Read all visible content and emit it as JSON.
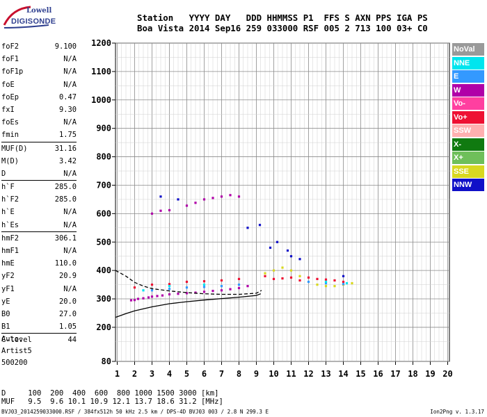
{
  "logo": {
    "line1": "Lowell",
    "line2": "DIGISONDE"
  },
  "header": {
    "line1": "Station   YYYY DAY   DDD HHMMSS P1  FFS S AXN PPS IGA PS",
    "line2": "Boa Vista 2014 Sep16 259 033000 RSF 005 2 713 100 03+ C0"
  },
  "params": [
    {
      "label": "foF2",
      "value": "9.100"
    },
    {
      "label": "foF1",
      "value": "N/A"
    },
    {
      "label": "foF1p",
      "value": "N/A"
    },
    {
      "label": "foE",
      "value": "N/A"
    },
    {
      "label": "foEp",
      "value": "0.47"
    },
    {
      "label": "fxI",
      "value": "9.30"
    },
    {
      "label": "foEs",
      "value": "N/A"
    },
    {
      "label": "fmin",
      "value": "1.75"
    },
    {
      "label": "MUF(D)",
      "value": "31.16"
    },
    {
      "label": "M(D)",
      "value": "3.42"
    },
    {
      "label": "D",
      "value": "N/A"
    },
    {
      "label": "h`F",
      "value": "285.0"
    },
    {
      "label": "h`F2",
      "value": "285.0"
    },
    {
      "label": "h`E",
      "value": "N/A"
    },
    {
      "label": "h`Es",
      "value": "N/A"
    },
    {
      "label": "hmF2",
      "value": "306.1"
    },
    {
      "label": "hmF1",
      "value": "N/A"
    },
    {
      "label": "hmE",
      "value": "110.0"
    },
    {
      "label": "yF2",
      "value": "20.9"
    },
    {
      "label": "yF1",
      "value": "N/A"
    },
    {
      "label": "yE",
      "value": "20.0"
    },
    {
      "label": "B0",
      "value": "27.0"
    },
    {
      "label": "B1",
      "value": "1.05"
    },
    {
      "label": "C-level",
      "value": "44"
    }
  ],
  "auto": {
    "line1": "Auto:",
    "line2": "Artist5",
    "line3": "500200"
  },
  "dmuf": {
    "d_row": "D     100  200  400  600  800 1000 1500 3000 [km]",
    "muf_row": "MUF   9.5  9.6 10.1 10.9 12.1 13.7 18.6 31.2 [MHz]"
  },
  "footer": {
    "info": "BVJ03_2014259033000.RSF / 384fx512h 50 kHz 2.5 km / DPS-4D BVJ03 003 / 2.8 N 299.3 E",
    "version": "Ion2Png v. 1.3.17"
  },
  "legend": [
    {
      "label": "NoVal",
      "color": "#9a9a9a"
    },
    {
      "label": "NNE",
      "color": "#00e5ee"
    },
    {
      "label": "E",
      "color": "#3399ff"
    },
    {
      "label": "W",
      "color": "#b000a8"
    },
    {
      "label": "Vo-",
      "color": "#ff3fa0"
    },
    {
      "label": "Vo+",
      "color": "#ee1133"
    },
    {
      "label": "SSW",
      "color": "#ffb0b0"
    },
    {
      "label": "X-",
      "color": "#107a10"
    },
    {
      "label": "X+",
      "color": "#6fbf5a"
    },
    {
      "label": "SSE",
      "color": "#d8d820"
    },
    {
      "label": "NNW",
      "color": "#1010c8"
    }
  ],
  "chart_data": {
    "type": "scatter",
    "title": "",
    "xlabel": "",
    "ylabel": "",
    "xlim": [
      0.9,
      20.1
    ],
    "ylim": [
      80,
      1200
    ],
    "x_ticks": [
      1,
      2,
      3,
      4,
      5,
      6,
      7,
      8,
      9,
      10,
      11,
      12,
      13,
      14,
      15,
      16,
      17,
      18,
      19,
      20
    ],
    "y_ticks": [
      80,
      200,
      300,
      400,
      500,
      600,
      700,
      800,
      900,
      1000,
      1100,
      1200
    ],
    "grid": true,
    "legend_position": "right",
    "series": [
      {
        "name": "W",
        "color": "#b000a8",
        "points": [
          [
            1.8,
            295
          ],
          [
            2.0,
            296
          ],
          [
            2.2,
            300
          ],
          [
            2.5,
            302
          ],
          [
            2.8,
            305
          ],
          [
            3.0,
            308
          ],
          [
            3.3,
            310
          ],
          [
            3.6,
            312
          ],
          [
            4.0,
            316
          ],
          [
            4.5,
            318
          ],
          [
            5.0,
            320
          ],
          [
            5.5,
            322
          ],
          [
            6.0,
            325
          ],
          [
            6.5,
            328
          ],
          [
            7.0,
            330
          ],
          [
            7.5,
            334
          ],
          [
            8.0,
            338
          ],
          [
            8.5,
            345
          ],
          [
            3.0,
            600
          ],
          [
            3.5,
            610
          ],
          [
            4.0,
            612
          ],
          [
            5.0,
            628
          ],
          [
            5.5,
            638
          ],
          [
            6.0,
            650
          ],
          [
            6.5,
            655
          ],
          [
            7.0,
            660
          ],
          [
            7.5,
            665
          ],
          [
            8.0,
            660
          ]
        ]
      },
      {
        "name": "Vo+",
        "color": "#ee1133",
        "points": [
          [
            2.0,
            340
          ],
          [
            3.0,
            350
          ],
          [
            4.0,
            352
          ],
          [
            5.0,
            360
          ],
          [
            6.0,
            362
          ],
          [
            7.0,
            365
          ],
          [
            8.0,
            370
          ],
          [
            9.5,
            380
          ],
          [
            10.0,
            370
          ],
          [
            10.5,
            372
          ],
          [
            11.0,
            375
          ],
          [
            11.5,
            365
          ],
          [
            12.0,
            375
          ],
          [
            12.5,
            370
          ],
          [
            13.0,
            368
          ],
          [
            13.5,
            365
          ],
          [
            14.0,
            360
          ]
        ]
      },
      {
        "name": "SSE",
        "color": "#d8d820",
        "points": [
          [
            9.5,
            390
          ],
          [
            10.0,
            400
          ],
          [
            10.5,
            410
          ],
          [
            11.0,
            400
          ],
          [
            11.5,
            380
          ],
          [
            12.5,
            350
          ],
          [
            13.0,
            345
          ],
          [
            13.5,
            345
          ],
          [
            14.0,
            350
          ],
          [
            14.5,
            355
          ]
        ]
      },
      {
        "name": "E",
        "color": "#3399ff",
        "points": [
          [
            3.0,
            330
          ],
          [
            4.0,
            335
          ],
          [
            5.0,
            340
          ],
          [
            6.0,
            342
          ],
          [
            7.0,
            345
          ],
          [
            8.0,
            350
          ],
          [
            12.0,
            360
          ],
          [
            13.0,
            355
          ],
          [
            14.0,
            352
          ]
        ]
      },
      {
        "name": "NNW",
        "color": "#1010c8",
        "points": [
          [
            8.5,
            550
          ],
          [
            9.2,
            560
          ],
          [
            9.8,
            480
          ],
          [
            10.2,
            500
          ],
          [
            10.8,
            470
          ],
          [
            11.0,
            450
          ],
          [
            11.5,
            440
          ],
          [
            14.0,
            380
          ],
          [
            3.5,
            660
          ],
          [
            4.5,
            650
          ]
        ]
      },
      {
        "name": "NNE",
        "color": "#00e5ee",
        "points": [
          [
            2.5,
            330
          ],
          [
            4.0,
            345
          ],
          [
            6.0,
            350
          ],
          [
            13.0,
            360
          ],
          [
            14.2,
            355
          ]
        ]
      }
    ],
    "traces": [
      {
        "name": "profile",
        "color": "#000000",
        "points": [
          [
            0.9,
            235
          ],
          [
            1.5,
            248
          ],
          [
            2.0,
            258
          ],
          [
            3.0,
            272
          ],
          [
            4.0,
            283
          ],
          [
            5.0,
            290
          ],
          [
            6.0,
            296
          ],
          [
            7.0,
            301
          ],
          [
            8.0,
            306
          ],
          [
            9.0,
            312
          ],
          [
            9.25,
            318
          ]
        ]
      },
      {
        "name": "fit-dashed",
        "color": "#000000",
        "points": [
          [
            0.9,
            400
          ],
          [
            1.5,
            380
          ],
          [
            2.0,
            358
          ],
          [
            2.5,
            345
          ],
          [
            3.0,
            336
          ],
          [
            4.0,
            328
          ],
          [
            5.0,
            322
          ],
          [
            6.0,
            318
          ],
          [
            7.0,
            316
          ],
          [
            8.0,
            316
          ],
          [
            9.0,
            320
          ],
          [
            9.3,
            330
          ]
        ]
      }
    ]
  }
}
